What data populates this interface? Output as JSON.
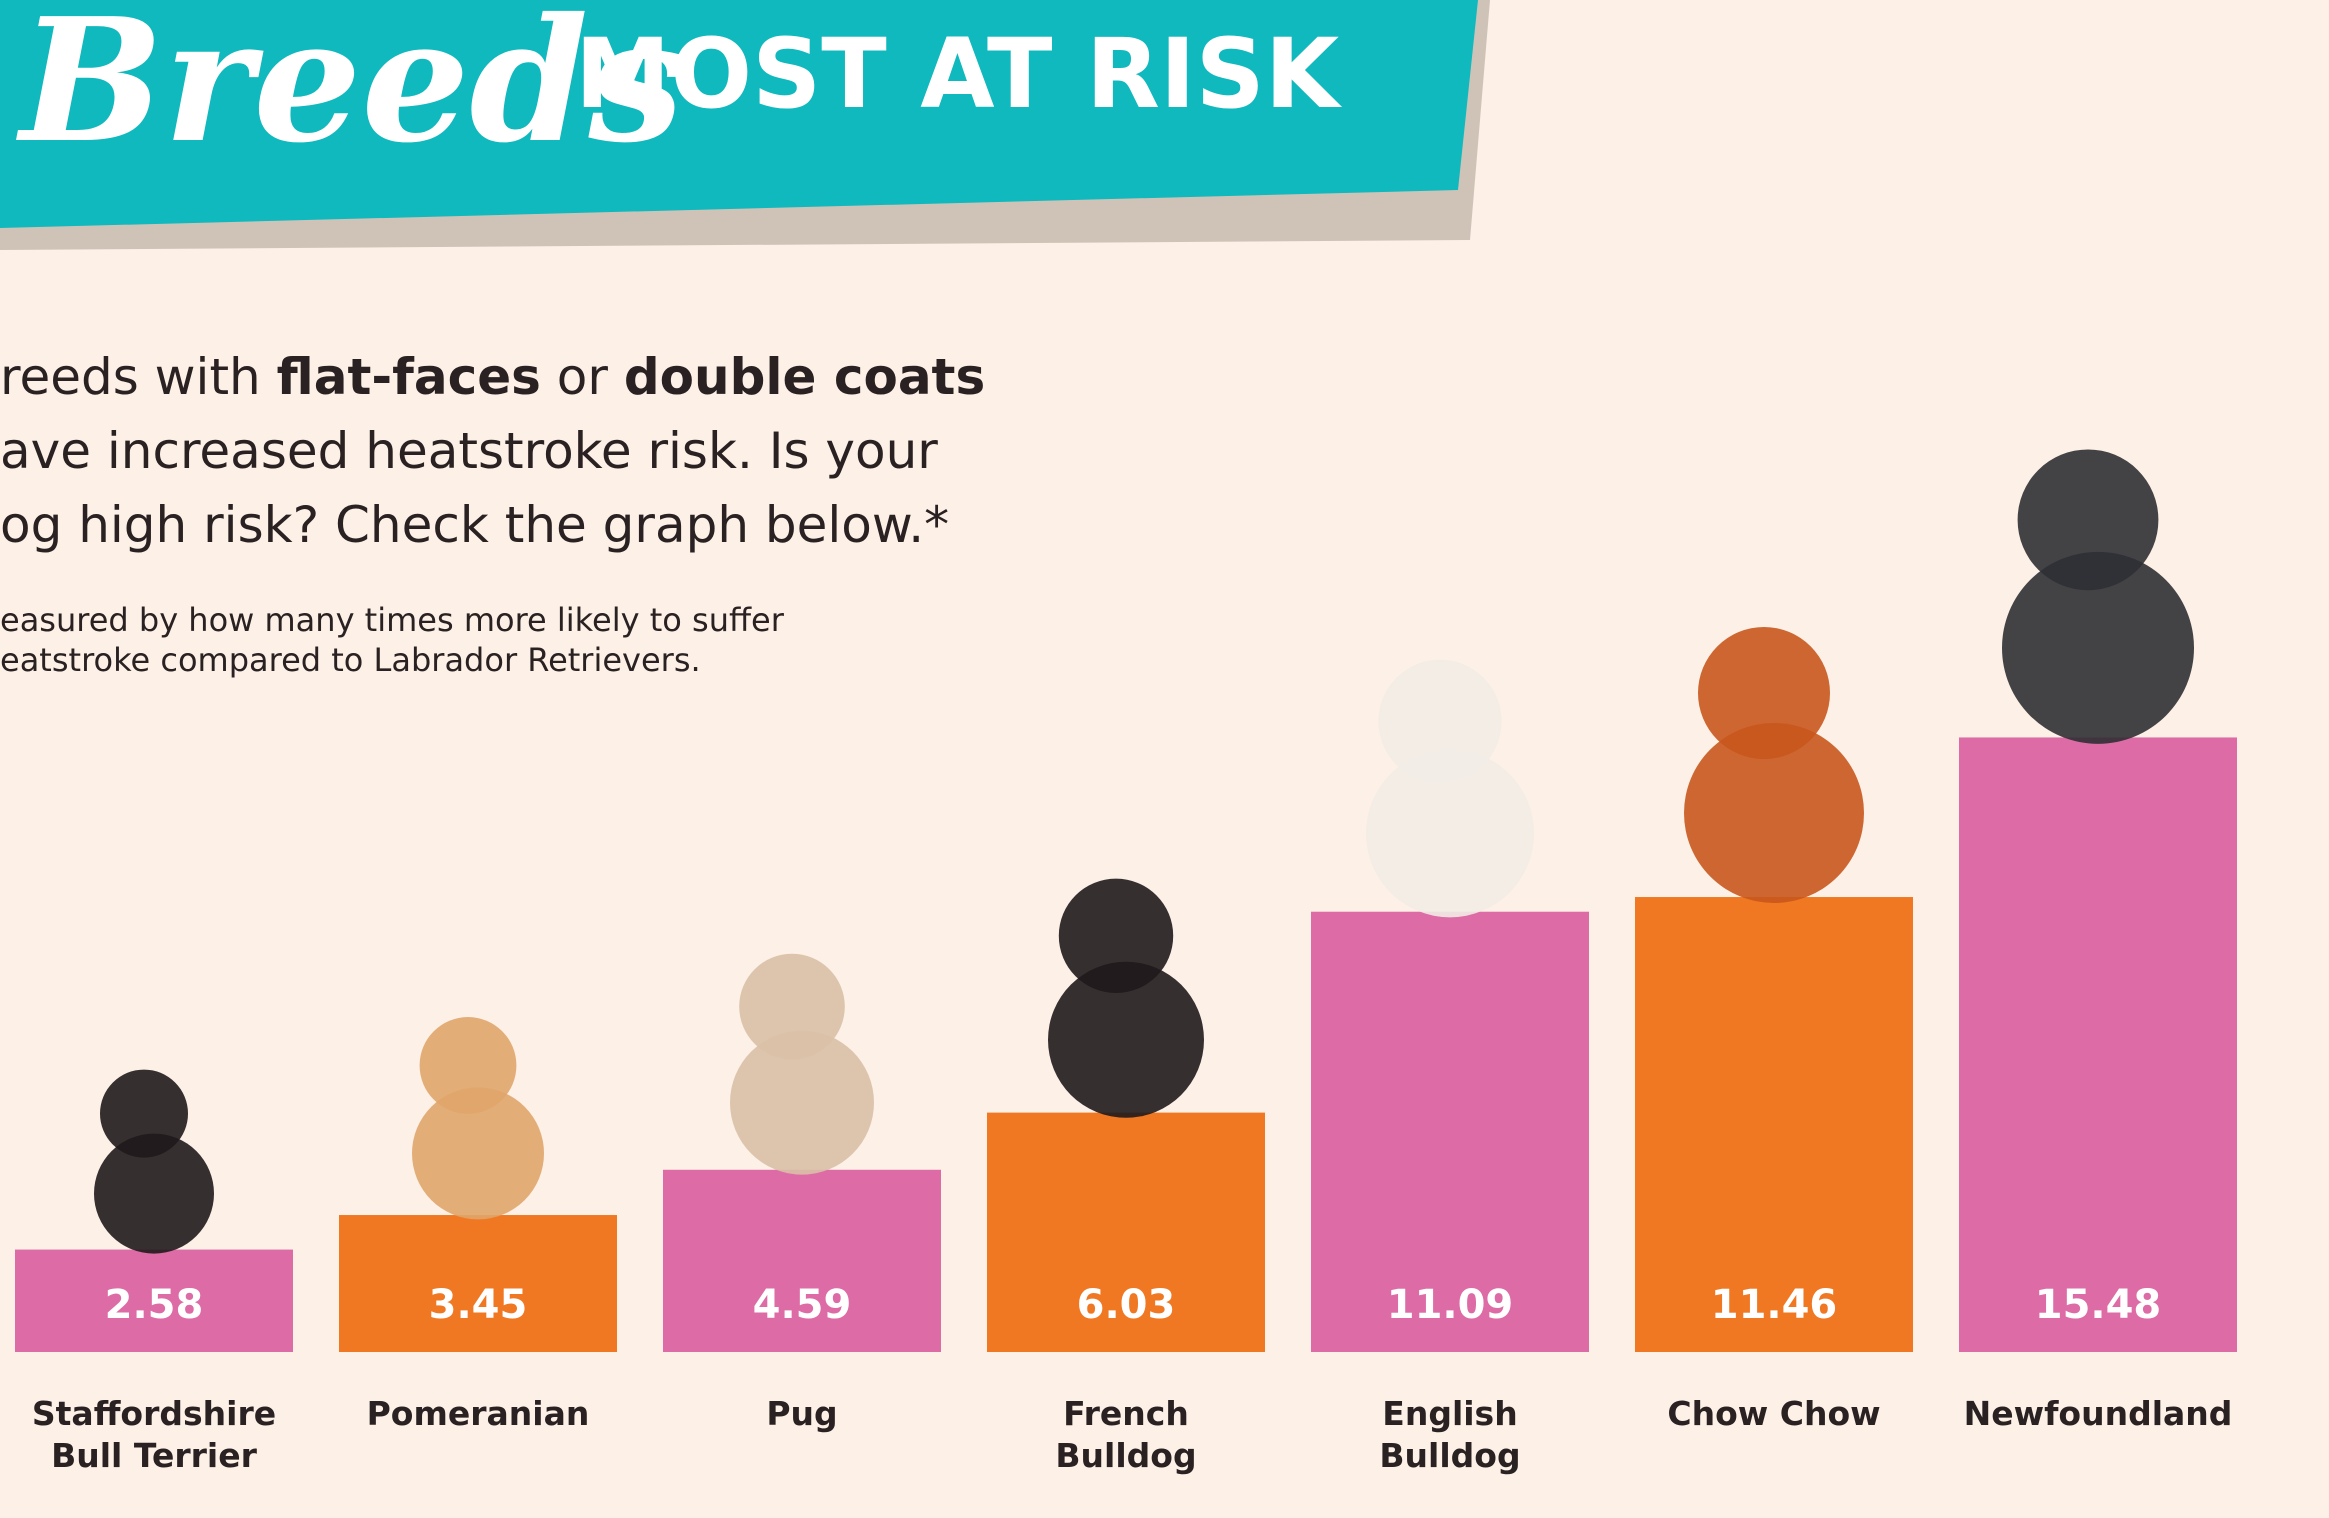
{
  "header": {
    "script_title": "Breeds",
    "title": "MOST AT RISK"
  },
  "intro": {
    "lines": [
      [
        "reeds with ",
        "flat-faces",
        " or ",
        "double coats"
      ],
      [
        "ave increased heatstroke risk. Is your"
      ],
      [
        "og high risk? Check the graph below.*"
      ]
    ],
    "footnote": [
      "easured by how many times more likely to suffer",
      "eatstroke compared to Labrador Retrievers."
    ]
  },
  "chart_data": {
    "type": "bar",
    "categories": [
      [
        "Staffordshire",
        "Bull Terrier"
      ],
      [
        "Pomeranian"
      ],
      [
        "Pug"
      ],
      [
        "French",
        "Bulldog"
      ],
      [
        "English",
        "Bulldog"
      ],
      [
        "Chow Chow"
      ],
      [
        "Newfoundland"
      ]
    ],
    "values": [
      2.58,
      3.45,
      4.59,
      6.03,
      11.09,
      11.46,
      15.48
    ],
    "colors": [
      "#dd6ba6",
      "#f07822",
      "#dd6ba6",
      "#f07822",
      "#dd6ba6",
      "#f07822",
      "#dd6ba6"
    ]
  }
}
